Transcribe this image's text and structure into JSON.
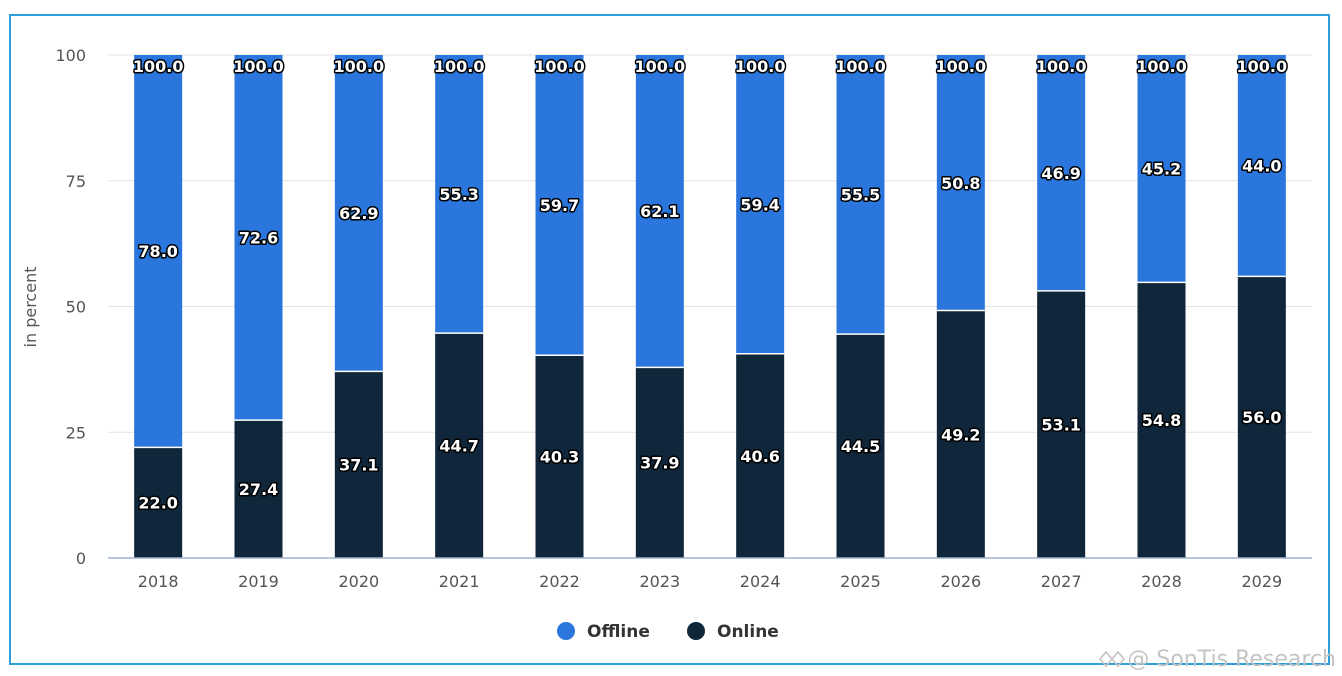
{
  "chart_data": {
    "type": "bar",
    "stacked": true,
    "categories": [
      "2018",
      "2019",
      "2020",
      "2021",
      "2022",
      "2023",
      "2024",
      "2025",
      "2026",
      "2027",
      "2028",
      "2029"
    ],
    "series": [
      {
        "name": "Online",
        "color": "#10263a",
        "values": [
          22.0,
          27.4,
          37.1,
          44.7,
          40.3,
          37.9,
          40.6,
          44.5,
          49.2,
          53.1,
          54.8,
          56.0
        ]
      },
      {
        "name": "Offline",
        "color": "#2a76dd",
        "values": [
          78.0,
          72.6,
          62.9,
          55.3,
          59.7,
          62.1,
          59.4,
          55.5,
          50.8,
          46.9,
          45.2,
          44.0
        ]
      }
    ],
    "totals": [
      100.0,
      100.0,
      100.0,
      100.0,
      100.0,
      100.0,
      100.0,
      100.0,
      100.0,
      100.0,
      100.0,
      100.0
    ],
    "ylabel": "in percent",
    "ylim": [
      0,
      100
    ],
    "yticks": [
      0,
      25,
      50,
      75,
      100
    ],
    "legend": [
      {
        "label": "Offline",
        "color": "#2a76dd"
      },
      {
        "label": "Online",
        "color": "#10263a"
      }
    ],
    "legend_position": "bottom-center",
    "grid": true
  },
  "watermark": "@ SonTis Research"
}
